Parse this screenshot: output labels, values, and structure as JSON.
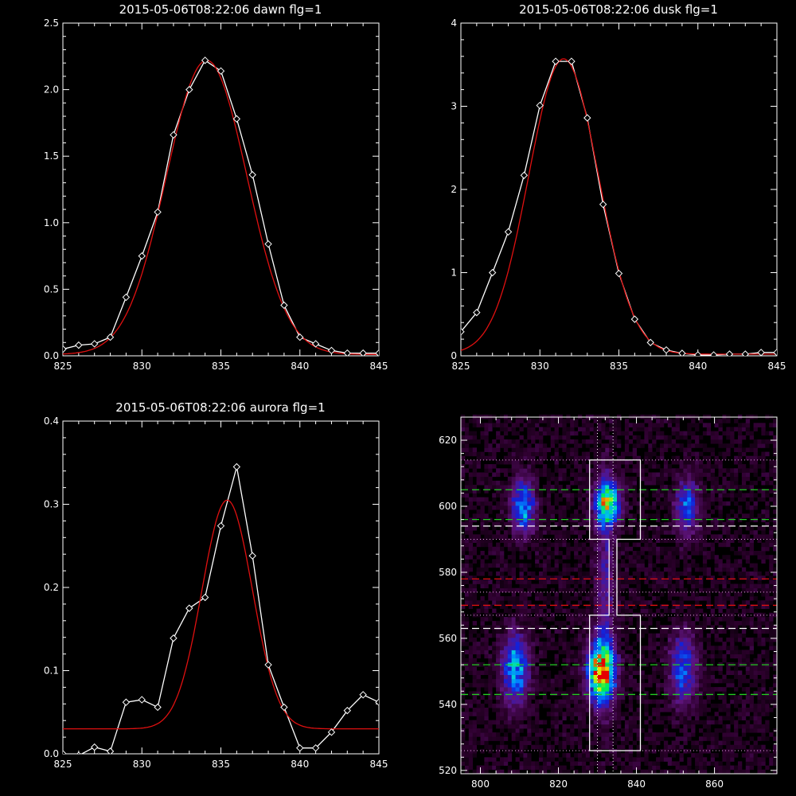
{
  "chart_data": [
    {
      "type": "line",
      "title": "2015-05-06T08:22:06 dawn flg=1",
      "xlim": [
        825,
        845
      ],
      "ylim": [
        0,
        2.5
      ],
      "xticks": [
        "825",
        "830",
        "835",
        "840",
        "845"
      ],
      "yticks": [
        "0.0",
        "0.5",
        "1.0",
        "1.5",
        "2.0",
        "2.5"
      ],
      "series": [
        {
          "color": "#ffffff",
          "marker": "diamond",
          "x": [
            825,
            826,
            827,
            828,
            829,
            830,
            831,
            832,
            833,
            834,
            835,
            836,
            837,
            838,
            839,
            840,
            841,
            842,
            843,
            844,
            845
          ],
          "y": [
            0.05,
            0.08,
            0.09,
            0.14,
            0.44,
            0.75,
            1.08,
            1.66,
            2.0,
            2.22,
            2.14,
            1.78,
            1.36,
            0.84,
            0.38,
            0.14,
            0.09,
            0.04,
            0.02,
            0.02,
            0.02
          ]
        },
        {
          "color": "#e01010",
          "marker": "none",
          "fit": "gaussian",
          "amplitude": 2.21,
          "center": 834.1,
          "sigma": 2.55,
          "offset": 0.01
        }
      ]
    },
    {
      "type": "line",
      "title": "2015-05-06T08:22:06 dusk flg=1",
      "xlim": [
        825,
        845
      ],
      "ylim": [
        0,
        4
      ],
      "xticks": [
        "825",
        "830",
        "835",
        "840",
        "845"
      ],
      "yticks": [
        "0",
        "1",
        "2",
        "3",
        "4"
      ],
      "series": [
        {
          "color": "#ffffff",
          "marker": "diamond",
          "x": [
            825,
            826,
            827,
            828,
            829,
            830,
            831,
            832,
            833,
            834,
            835,
            836,
            837,
            838,
            839,
            840,
            841,
            842,
            843,
            844,
            845
          ],
          "y": [
            0.29,
            0.52,
            1.0,
            1.49,
            2.17,
            3.01,
            3.54,
            3.54,
            2.86,
            1.82,
            0.99,
            0.44,
            0.16,
            0.07,
            0.03,
            0.01,
            0.01,
            0.02,
            0.02,
            0.04,
            0.04
          ]
        },
        {
          "color": "#e01010",
          "marker": "none",
          "fit": "gaussian",
          "amplitude": 3.55,
          "center": 831.5,
          "sigma": 2.2,
          "offset": 0.02
        }
      ]
    },
    {
      "type": "line",
      "title": "2015-05-06T08:22:06 aurora flg=1",
      "xlim": [
        825,
        845
      ],
      "ylim": [
        0,
        0.4
      ],
      "xticks": [
        "825",
        "830",
        "835",
        "840",
        "845"
      ],
      "yticks": [
        "0.0",
        "0.1",
        "0.2",
        "0.3",
        "0.4"
      ],
      "series": [
        {
          "color": "#ffffff",
          "marker": "diamond",
          "x": [
            825,
            826,
            827,
            828,
            829,
            830,
            831,
            832,
            833,
            834,
            835,
            836,
            837,
            838,
            839,
            840,
            841,
            842,
            843,
            844,
            845
          ],
          "y": [
            0.0,
            -0.002,
            0.008,
            0.003,
            0.062,
            0.065,
            0.056,
            0.139,
            0.175,
            0.188,
            0.274,
            0.345,
            0.238,
            0.107,
            0.056,
            0.007,
            0.007,
            0.026,
            0.052,
            0.071,
            0.062
          ]
        },
        {
          "color": "#e01010",
          "marker": "none",
          "fit": "gaussian",
          "amplitude": 0.275,
          "center": 835.4,
          "sigma": 1.6,
          "offset": 0.03
        }
      ]
    },
    {
      "type": "heatmap",
      "title": "",
      "xlim": [
        795,
        876
      ],
      "ylim": [
        519,
        627
      ],
      "xticks": [
        "800",
        "820",
        "840",
        "860"
      ],
      "yticks": [
        "520",
        "540",
        "560",
        "580",
        "600",
        "620"
      ],
      "colormap": "rainbow",
      "blobs": [
        {
          "x": 811,
          "y": 600,
          "sx": 2.0,
          "sy": 5.5,
          "amp": 0.5
        },
        {
          "x": 809,
          "y": 551,
          "sx": 2.3,
          "sy": 7.0,
          "amp": 0.52
        },
        {
          "x": 832.5,
          "y": 601,
          "sx": 2.2,
          "sy": 4.5,
          "amp": 0.72
        },
        {
          "x": 831,
          "y": 550,
          "sx": 2.3,
          "sy": 6.0,
          "amp": 1.0
        },
        {
          "x": 832,
          "y": 576,
          "sx": 1.6,
          "sy": 22.0,
          "amp": 0.22
        },
        {
          "x": 853,
          "y": 600,
          "sx": 2.0,
          "sy": 5.5,
          "amp": 0.4
        },
        {
          "x": 852,
          "y": 551,
          "sx": 2.3,
          "sy": 7.0,
          "amp": 0.4
        }
      ],
      "outline": [
        [
          828,
          614
        ],
        [
          841,
          614
        ],
        [
          841,
          590
        ],
        [
          835,
          590
        ],
        [
          835,
          567
        ],
        [
          841,
          567
        ],
        [
          841,
          526
        ],
        [
          828,
          526
        ],
        [
          828,
          567
        ],
        [
          833,
          567
        ],
        [
          833,
          590
        ],
        [
          828,
          590
        ]
      ],
      "vlines": [
        {
          "x": 830,
          "color": "#ffffff",
          "dash": "dotted"
        },
        {
          "x": 834,
          "color": "#ffffff",
          "dash": "dotted"
        }
      ],
      "hlines": [
        {
          "y": 614,
          "color": "#e8a0e8",
          "dash": "dotted"
        },
        {
          "y": 605,
          "color": "#22cc22",
          "dash": "dashed"
        },
        {
          "y": 596,
          "color": "#22cc22",
          "dash": "dashed"
        },
        {
          "y": 594,
          "color": "#ffffff",
          "dash": "dashed"
        },
        {
          "y": 590,
          "color": "#e8a0e8",
          "dash": "dotted"
        },
        {
          "y": 578,
          "color": "#e01010",
          "dash": "dashed"
        },
        {
          "y": 574,
          "color": "#e8a0e8",
          "dash": "dotted"
        },
        {
          "y": 570,
          "color": "#e01010",
          "dash": "dashed"
        },
        {
          "y": 567,
          "color": "#e8a0e8",
          "dash": "dotted"
        },
        {
          "y": 563,
          "color": "#ffffff",
          "dash": "dashed"
        },
        {
          "y": 552,
          "color": "#22cc22",
          "dash": "dashed"
        },
        {
          "y": 543,
          "color": "#22cc22",
          "dash": "dashed"
        },
        {
          "y": 526,
          "color": "#e8a0e8",
          "dash": "dotted"
        }
      ]
    }
  ]
}
